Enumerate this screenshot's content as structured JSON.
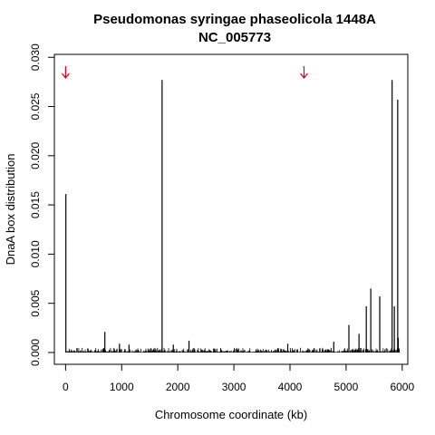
{
  "chart_data": {
    "type": "bar",
    "title": "Pseudomonas syringae phaseolicola 1448A",
    "subtitle": "NC_005773",
    "xlabel": "Chromosome coordinate (kb)",
    "ylabel": "DnaA box distribution",
    "xlim": [
      -200,
      6100
    ],
    "ylim": [
      -0.0012,
      0.0303
    ],
    "x_ticks": [
      0,
      1000,
      2000,
      3000,
      4000,
      5000,
      6000
    ],
    "x_tick_labels": [
      "0",
      "1000",
      "2000",
      "3000",
      "4000",
      "5000",
      "6000"
    ],
    "y_ticks": [
      0.0,
      0.005,
      0.01,
      0.015,
      0.02,
      0.025,
      0.03
    ],
    "y_tick_labels": [
      "0.000",
      "0.005",
      "0.010",
      "0.015",
      "0.020",
      "0.025",
      "0.030"
    ],
    "grid": false,
    "spikes": [
      {
        "x": 5,
        "y": 0.0161
      },
      {
        "x": 700,
        "y": 0.0021
      },
      {
        "x": 960,
        "y": 0.0009
      },
      {
        "x": 1130,
        "y": 0.0008
      },
      {
        "x": 1720,
        "y": 0.0277
      },
      {
        "x": 1920,
        "y": 0.0008
      },
      {
        "x": 2200,
        "y": 0.0012
      },
      {
        "x": 3960,
        "y": 0.0009
      },
      {
        "x": 4780,
        "y": 0.0011
      },
      {
        "x": 5050,
        "y": 0.0028
      },
      {
        "x": 5230,
        "y": 0.0019
      },
      {
        "x": 5360,
        "y": 0.0047
      },
      {
        "x": 5440,
        "y": 0.0065
      },
      {
        "x": 5600,
        "y": 0.0057
      },
      {
        "x": 5820,
        "y": 0.0277
      },
      {
        "x": 5860,
        "y": 0.0047
      },
      {
        "x": 5920,
        "y": 0.0257
      },
      {
        "x": 5930,
        "y": 0.0015
      }
    ],
    "baseline_level": 0.0002,
    "origin_arrows_x": [
      0,
      4250
    ],
    "colors": {
      "bars": "#000000",
      "arrows": "#d6001c",
      "axes": "#000000"
    }
  }
}
